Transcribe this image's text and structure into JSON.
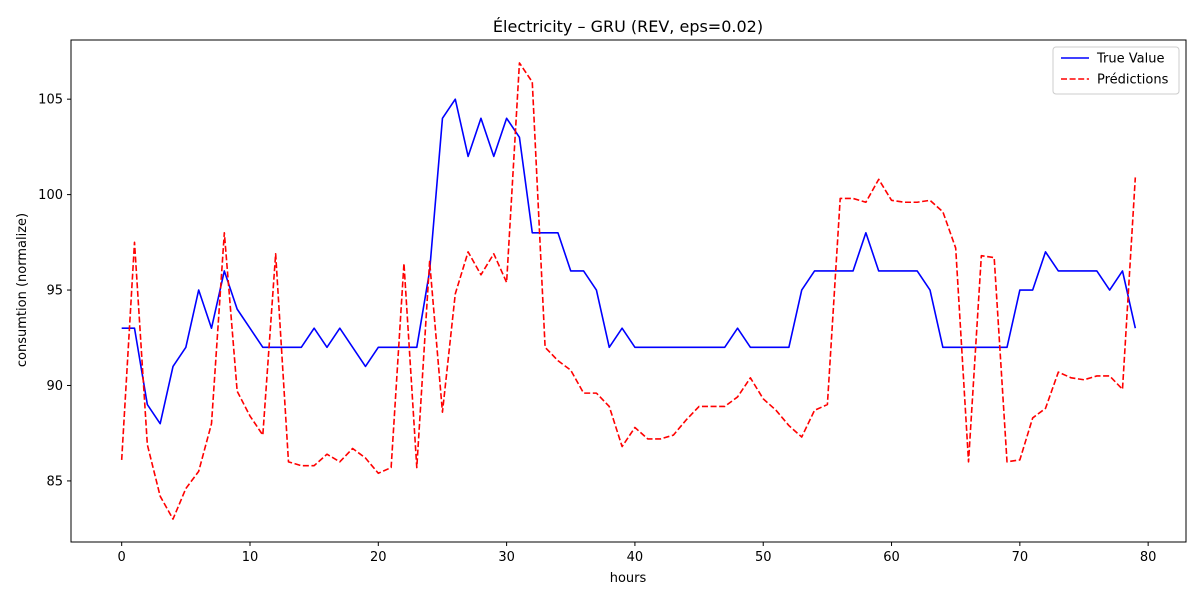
{
  "chart_data": {
    "type": "line",
    "title": "Électricity – GRU (REV, eps=0.02)",
    "xlabel": "hours",
    "ylabel": "consumtion (normalize)",
    "xlim": [
      -3.95,
      82.95
    ],
    "ylim": [
      81.8,
      108.1
    ],
    "xticks": [
      0,
      10,
      20,
      30,
      40,
      50,
      60,
      70,
      80
    ],
    "yticks": [
      85,
      90,
      95,
      100,
      105
    ],
    "grid": false,
    "legend_position": "top-right",
    "x": [
      0,
      1,
      2,
      3,
      4,
      5,
      6,
      7,
      8,
      9,
      10,
      11,
      12,
      13,
      14,
      15,
      16,
      17,
      18,
      19,
      20,
      21,
      22,
      23,
      24,
      25,
      26,
      27,
      28,
      29,
      30,
      31,
      32,
      33,
      34,
      35,
      36,
      37,
      38,
      39,
      40,
      41,
      42,
      43,
      44,
      45,
      46,
      47,
      48,
      49,
      50,
      51,
      52,
      53,
      54,
      55,
      56,
      57,
      58,
      59,
      60,
      61,
      62,
      63,
      64,
      65,
      66,
      67,
      68,
      69,
      70,
      71,
      72,
      73,
      74,
      75,
      76,
      77,
      78,
      79
    ],
    "series": [
      {
        "name": "True Value",
        "color": "#0000ff",
        "style": "solid",
        "values": [
          93,
          93,
          89,
          88,
          91,
          92,
          95,
          93,
          96,
          94,
          93,
          92,
          92,
          92,
          92,
          93,
          92,
          93,
          92,
          91,
          92,
          92,
          92,
          92,
          96,
          104,
          105,
          102,
          104,
          102,
          104,
          103,
          98,
          98,
          98,
          96,
          96,
          95,
          92,
          93,
          92,
          92,
          92,
          92,
          92,
          92,
          92,
          92,
          93,
          92,
          92,
          92,
          92,
          95,
          96,
          96,
          96,
          96,
          98,
          96,
          96,
          96,
          96,
          95,
          92,
          92,
          92,
          92,
          92,
          92,
          95,
          95,
          97,
          96,
          96,
          96,
          96,
          95,
          96,
          93
        ]
      },
      {
        "name": "Prédictions",
        "color": "#ff0000",
        "style": "dashed",
        "values": [
          86.1,
          97.5,
          86.9,
          84.2,
          83.0,
          84.6,
          85.5,
          88.0,
          98.0,
          89.7,
          88.4,
          87.4,
          96.9,
          86.0,
          85.8,
          85.8,
          86.4,
          86.0,
          86.7,
          86.2,
          85.4,
          85.7,
          96.4,
          85.7,
          96.5,
          88.6,
          94.8,
          97.0,
          95.8,
          96.9,
          95.4,
          106.9,
          105.9,
          92.0,
          91.3,
          90.8,
          89.6,
          89.6,
          88.9,
          86.8,
          87.8,
          87.2,
          87.2,
          87.4,
          88.2,
          88.9,
          88.9,
          88.9,
          89.4,
          90.4,
          89.3,
          88.7,
          87.9,
          87.3,
          88.7,
          89.0,
          99.8,
          99.8,
          99.6,
          100.8,
          99.7,
          99.6,
          99.6,
          99.7,
          99.1,
          97.2,
          86.0,
          96.8,
          96.7,
          86.0,
          86.1,
          88.3,
          88.8,
          90.7,
          90.4,
          90.3,
          90.5,
          90.5,
          89.8,
          100.9
        ]
      }
    ]
  }
}
